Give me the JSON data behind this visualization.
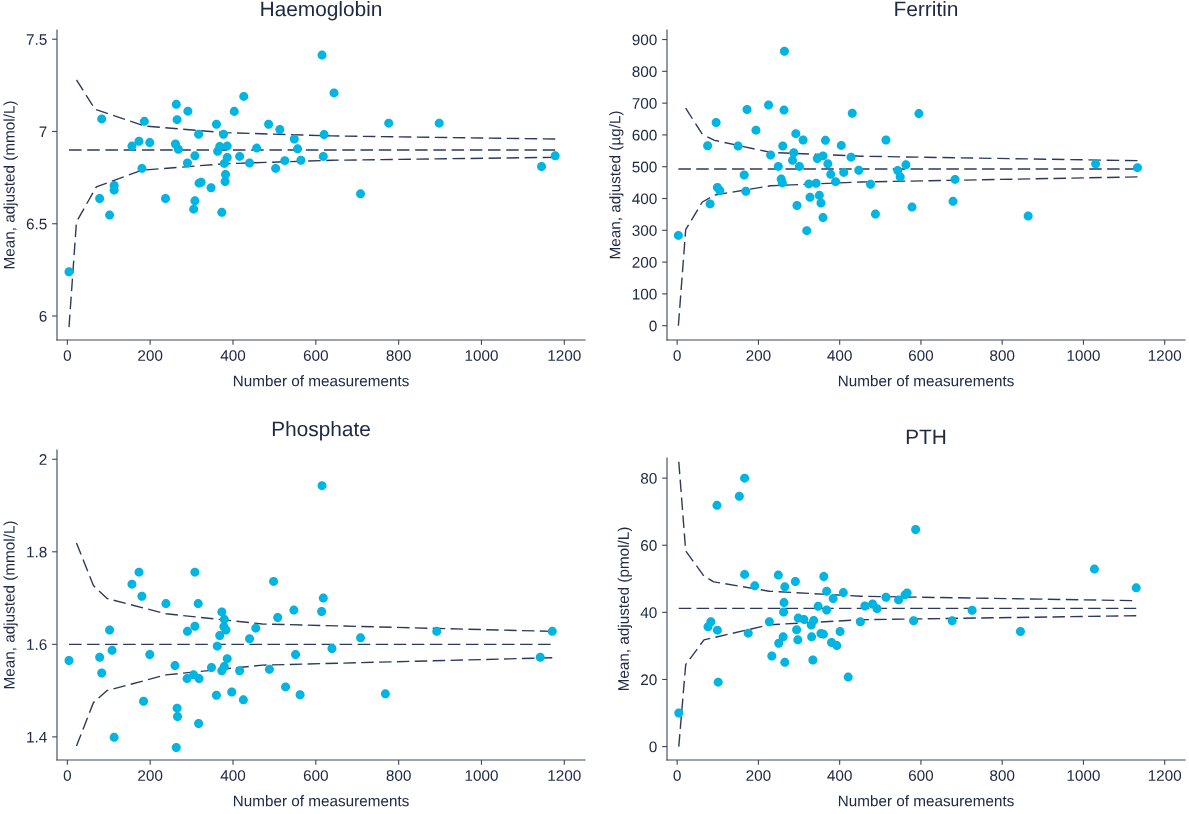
{
  "chart_data": [
    {
      "type": "scatter",
      "title": "Haemoglobin",
      "xlabel": "Number of measurements",
      "ylabel": "Mean, adjusted (mmol/L)",
      "xlim": [
        -25,
        1250
      ],
      "xticks": [
        0,
        200,
        400,
        600,
        800,
        1000,
        1200
      ],
      "ylim": [
        5.87,
        7.55
      ],
      "yticks": [
        6,
        6.5,
        7,
        7.5
      ],
      "grid": false,
      "legend": false,
      "series": [
        {
          "color": "#00b5e2",
          "marker": "circle",
          "x": [
            4,
            83,
            78,
            102,
            113,
            113,
            156,
            173,
            186,
            180,
            199,
            237,
            263,
            265,
            261,
            268,
            291,
            290,
            308,
            308,
            305,
            317,
            318,
            323,
            347,
            360,
            363,
            368,
            377,
            386,
            386,
            379,
            382,
            381,
            373,
            403,
            426,
            416,
            440,
            457,
            486,
            503,
            513,
            525,
            548,
            556,
            564,
            615,
            620,
            618,
            644,
            708,
            776,
            898,
            1145,
            1178
          ],
          "values": [
            6.24,
            7.068,
            6.637,
            6.547,
            6.707,
            6.682,
            6.921,
            6.947,
            7.055,
            6.8,
            6.94,
            6.637,
            7.147,
            7.064,
            6.932,
            6.904,
            7.11,
            6.829,
            6.868,
            6.624,
            6.579,
            6.985,
            6.72,
            6.725,
            6.695,
            7.039,
            6.893,
            6.919,
            6.985,
            6.921,
            6.859,
            6.827,
            6.767,
            6.729,
            6.562,
            7.109,
            7.19,
            6.865,
            6.829,
            6.91,
            7.039,
            6.8,
            7.011,
            6.842,
            6.959,
            6.906,
            6.844,
            7.414,
            6.983,
            6.865,
            7.209,
            6.662,
            7.045,
            7.045,
            6.81,
            6.868
          ]
        },
        {
          "type": "line",
          "color": "#2b3a5c",
          "marker": "none",
          "line_style": "dashed",
          "x": [
            4,
            1178
          ],
          "values": [
            6.9,
            6.9
          ]
        },
        {
          "type": "line",
          "color": "#2b3a5c",
          "marker": "none",
          "line_style": "dashed",
          "x": [
            22,
            67,
            186,
            377,
            637,
            1178
          ],
          "values": [
            7.28,
            7.12,
            7.03,
            6.994,
            6.976,
            6.959
          ]
        },
        {
          "type": "line",
          "color": "#2b3a5c",
          "marker": "none",
          "line_style": "dashed",
          "x": [
            4,
            22,
            70,
            180,
            379,
            637,
            1178
          ],
          "values": [
            5.94,
            6.51,
            6.7,
            6.79,
            6.825,
            6.844,
            6.86
          ]
        }
      ]
    },
    {
      "type": "scatter",
      "title": "Ferritin",
      "xlabel": "Number of measurements",
      "ylabel": "Mean, adjusted (µg/L)",
      "xlim": [
        -25,
        1250
      ],
      "xticks": [
        0,
        200,
        400,
        600,
        800,
        1000,
        1200
      ],
      "ylim": [
        -45,
        930
      ],
      "yticks": [
        0,
        100,
        200,
        300,
        400,
        500,
        600,
        700,
        800,
        900
      ],
      "grid": false,
      "legend": false,
      "series": [
        {
          "color": "#00b5e2",
          "marker": "circle",
          "x": [
            3,
            75,
            81,
            96,
            99,
            105,
            150,
            165,
            169,
            172,
            194,
            225,
            230,
            249,
            256,
            259,
            260,
            263,
            264,
            284,
            287,
            292,
            295,
            301,
            310,
            319,
            324,
            327,
            342,
            345,
            350,
            354,
            359,
            359,
            365,
            371,
            378,
            390,
            404,
            410,
            428,
            431,
            447,
            476,
            488,
            514,
            543,
            549,
            563,
            578,
            595,
            679,
            684,
            864,
            1030,
            1133
          ],
          "values": [
            284,
            566,
            383,
            639,
            435,
            425,
            565,
            474,
            423,
            680,
            615,
            694,
            537,
            501,
            461,
            449,
            565,
            678,
            863,
            520,
            544,
            604,
            378,
            501,
            584,
            299,
            446,
            404,
            448,
            526,
            410,
            386,
            534,
            340,
            583,
            509,
            476,
            453,
            567,
            482,
            530,
            668,
            489,
            445,
            351,
            584,
            488,
            468,
            506,
            373,
            667,
            391,
            460,
            345,
            509,
            497
          ]
        },
        {
          "type": "line",
          "color": "#2b3a5c",
          "marker": "none",
          "line_style": "dashed",
          "x": [
            3,
            1133
          ],
          "values": [
            493,
            493
          ]
        },
        {
          "type": "line",
          "color": "#2b3a5c",
          "marker": "none",
          "line_style": "dashed",
          "x": [
            21,
            62,
            92,
            230,
            453,
            1133
          ],
          "values": [
            684,
            602,
            583,
            545,
            533,
            519
          ]
        },
        {
          "type": "line",
          "color": "#2b3a5c",
          "marker": "none",
          "line_style": "dashed",
          "x": [
            3,
            21,
            62,
            92,
            230,
            453,
            1133
          ],
          "values": [
            0,
            302,
            389,
            411,
            440,
            452,
            468
          ]
        }
      ]
    },
    {
      "type": "scatter",
      "title": "Phosphate",
      "xlabel": "Number of measurements",
      "ylabel": "Mean, adjusted (mmol/L)",
      "xlim": [
        -25,
        1250
      ],
      "xticks": [
        0,
        200,
        400,
        600,
        800,
        1000,
        1200
      ],
      "ylim": [
        1.35,
        2.02
      ],
      "yticks": [
        1.4,
        1.6,
        1.8,
        {
          "value": 2,
          "label": "2"
        }
      ],
      "grid": false,
      "legend": false,
      "series": [
        {
          "color": "#00b5e2",
          "marker": "circle",
          "x": [
            4,
            78,
            83,
            102,
            108,
            113,
            156,
            173,
            180,
            184,
            199,
            238,
            260,
            265,
            266,
            263,
            290,
            289,
            308,
            308,
            305,
            316,
            318,
            317,
            348,
            360,
            362,
            368,
            373,
            379,
            378,
            383,
            373,
            379,
            386,
            397,
            416,
            425,
            440,
            455,
            488,
            498,
            508,
            527,
            547,
            551,
            562,
            614,
            618,
            615,
            639,
            708,
            768,
            892,
            1142,
            1171
          ],
          "values": [
            1.565,
            1.572,
            1.538,
            1.631,
            1.587,
            1.399,
            1.73,
            1.756,
            1.704,
            1.477,
            1.578,
            1.688,
            1.554,
            1.462,
            1.444,
            1.377,
            1.628,
            1.526,
            1.756,
            1.639,
            1.534,
            1.688,
            1.526,
            1.429,
            1.55,
            1.49,
            1.596,
            1.619,
            1.67,
            1.654,
            1.638,
            1.631,
            1.543,
            1.552,
            1.569,
            1.497,
            1.543,
            1.48,
            1.612,
            1.635,
            1.546,
            1.736,
            1.658,
            1.508,
            1.674,
            1.578,
            1.491,
            1.671,
            1.7,
            1.943,
            1.591,
            1.614,
            1.493,
            1.628,
            1.572,
            1.628
          ]
        },
        {
          "type": "line",
          "color": "#2b3a5c",
          "marker": "none",
          "line_style": "dashed",
          "x": [
            4,
            1167
          ],
          "values": [
            1.6,
            1.6
          ]
        },
        {
          "type": "line",
          "color": "#2b3a5c",
          "marker": "none",
          "line_style": "dashed",
          "x": [
            22,
            63,
            96,
            238,
            471,
            1171
          ],
          "values": [
            1.819,
            1.727,
            1.699,
            1.666,
            1.644,
            1.628
          ]
        },
        {
          "type": "line",
          "color": "#2b3a5c",
          "marker": "none",
          "line_style": "dashed",
          "x": [
            22,
            63,
            96,
            238,
            471,
            1171
          ],
          "values": [
            1.38,
            1.474,
            1.5,
            1.534,
            1.555,
            1.571
          ]
        }
      ]
    },
    {
      "type": "scatter",
      "title": "PTH",
      "xlabel": "Number of measurements",
      "ylabel": "Mean, adjusted (pmol/L)",
      "xlim": [
        -25,
        1250
      ],
      "xticks": [
        0,
        200,
        400,
        600,
        800,
        1000,
        1200
      ],
      "ylim": [
        -4,
        86
      ],
      "yticks": [
        0,
        20,
        40,
        60,
        80
      ],
      "grid": false,
      "legend": false,
      "series": [
        {
          "color": "#00b5e2",
          "marker": "circle",
          "x": [
            4,
            76,
            83,
            98,
            99,
            101,
            153,
            166,
            166,
            175,
            191,
            227,
            233,
            249,
            250,
            261,
            262,
            263,
            265,
            265,
            291,
            294,
            297,
            298,
            312,
            330,
            331,
            334,
            336,
            347,
            354,
            361,
            360,
            368,
            368,
            380,
            384,
            393,
            401,
            409,
            421,
            451,
            462,
            481,
            492,
            514,
            545,
            561,
            566,
            582,
            587,
            677,
            726,
            845,
            1027,
            1130
          ],
          "values": [
            10.0,
            35.7,
            37.2,
            71.9,
            34.7,
            19.2,
            74.6,
            80.0,
            51.3,
            33.8,
            47.9,
            37.2,
            27.0,
            51.1,
            30.8,
            32.7,
            40.1,
            42.9,
            25.1,
            47.6,
            49.2,
            34.8,
            31.8,
            38.3,
            37.9,
            36.2,
            32.7,
            25.8,
            37.6,
            41.8,
            33.7,
            50.7,
            33.5,
            40.7,
            46.3,
            31.0,
            44.1,
            30.1,
            34.3,
            45.9,
            20.7,
            37.2,
            41.9,
            42.5,
            41.1,
            44.5,
            43.7,
            45.2,
            45.8,
            37.5,
            64.7,
            37.5,
            40.6,
            34.3,
            52.9,
            47.3
          ]
        },
        {
          "type": "line",
          "color": "#2b3a5c",
          "marker": "none",
          "line_style": "dashed",
          "x": [
            4,
            1130
          ],
          "values": [
            41.2,
            41.2
          ]
        },
        {
          "type": "line",
          "color": "#2b3a5c",
          "marker": "none",
          "line_style": "dashed",
          "x": [
            4,
            21,
            66,
            90,
            227,
            452,
            1120
          ],
          "values": [
            84.9,
            58.3,
            50.8,
            49.1,
            46.3,
            44.8,
            43.5
          ]
        },
        {
          "type": "line",
          "color": "#2b3a5c",
          "marker": "none",
          "line_style": "dashed",
          "x": [
            4,
            21,
            66,
            227,
            452,
            1130
          ],
          "values": [
            0.0,
            24.4,
            31.8,
            36.3,
            37.8,
            39.0
          ]
        }
      ]
    }
  ]
}
